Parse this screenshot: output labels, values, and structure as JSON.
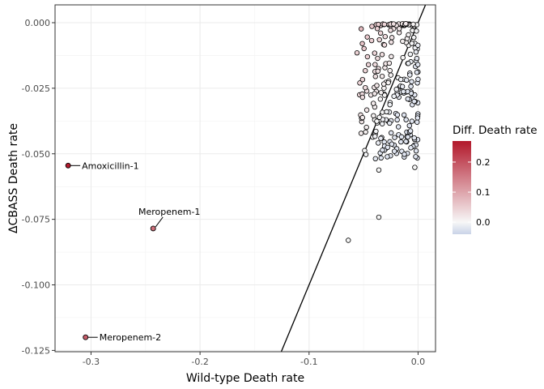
{
  "chart_data": {
    "type": "scatter",
    "xlabel": "Wild-type Death rate",
    "ylabel": "ΔCBASS  Death  rate",
    "xlim": [
      -0.333,
      0.016
    ],
    "ylim": [
      -0.1255,
      0.0068
    ],
    "x_ticks": [
      -0.3,
      -0.2,
      -0.1,
      0.0
    ],
    "x_tick_labels": [
      "-0.3",
      "-0.2",
      "-0.1",
      "0.0"
    ],
    "y_ticks": [
      0.0,
      -0.025,
      -0.05,
      -0.075,
      -0.1,
      -0.125
    ],
    "y_tick_labels": [
      "0.000",
      "-0.025",
      "-0.050",
      "-0.075",
      "-0.100",
      "-0.125"
    ],
    "grid": true,
    "legend": {
      "title": "Diff. Death rate",
      "placement": "right",
      "type": "colorbar",
      "range": [
        -0.04,
        0.27
      ],
      "ticks": [
        0.0,
        0.1,
        0.2
      ],
      "tick_labels": [
        "0.0",
        "0.1",
        "0.2"
      ],
      "colors": {
        "low": "#c9d3e8",
        "mid": "#f7f7f7",
        "high": "#b2182b"
      }
    },
    "reference_line": {
      "type": "identity",
      "slope": 1,
      "intercept": 0
    },
    "labeled_points": [
      {
        "label": "Amoxicillin-1",
        "x": -0.321,
        "y": -0.0545,
        "diff": 0.267
      },
      {
        "label": "Meropenem-1",
        "x": -0.243,
        "y": -0.0785,
        "diff": 0.165
      },
      {
        "label": "Meropenem-2",
        "x": -0.305,
        "y": -0.12,
        "diff": 0.185
      }
    ],
    "outliers": [
      {
        "x": -0.064,
        "y": -0.083
      },
      {
        "x": -0.036,
        "y": -0.0742
      },
      {
        "x": -0.036,
        "y": -0.0562
      },
      {
        "x": -0.003,
        "y": -0.0552
      },
      {
        "x": -0.051,
        "y": -0.0362
      },
      {
        "x": -0.056,
        "y": -0.0115
      }
    ],
    "cluster": {
      "x_range": [
        -0.054,
        0.0
      ],
      "y_range": [
        -0.052,
        0.0
      ],
      "n": 250
    }
  }
}
